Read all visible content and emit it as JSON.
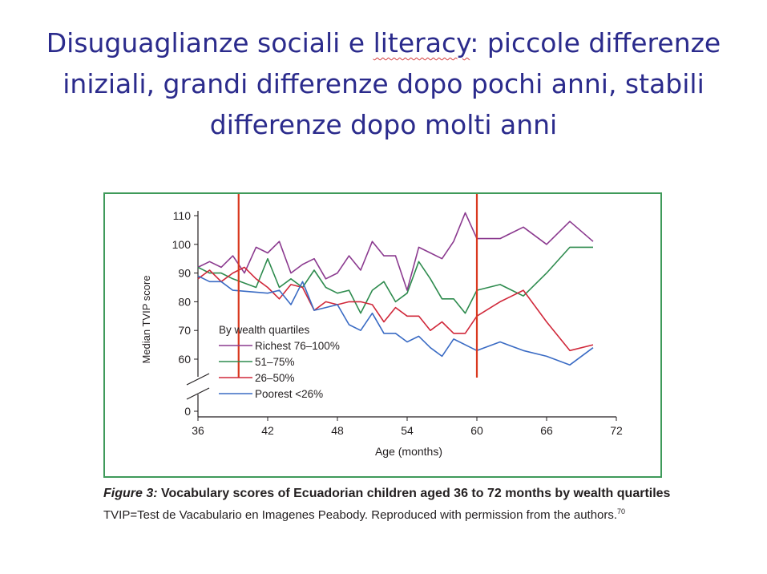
{
  "slide": {
    "title_part1": "Disuguaglianze sociali e ",
    "title_word_underlined": "literacy",
    "title_part2": ": piccole differenze iniziali, grandi differenze dopo pochi anni, stabili differenze dopo molti anni"
  },
  "caption": {
    "figure_label": "Figure 3:",
    "title": "Vocabulary scores of Ecuadorian children aged 36 to 72 months by wealth quartiles",
    "note": "TVIP=Test de Vacabulario en Imagenes Peabody. Reproduced with permission from the authors.",
    "ref": "70"
  },
  "chart_data": {
    "type": "line",
    "xlabel": "Age (months)",
    "ylabel": "Median TVIP score",
    "xlim": [
      36,
      72
    ],
    "x_ticks": [
      36,
      42,
      48,
      54,
      60,
      66,
      72
    ],
    "y_ticks": [
      60,
      70,
      80,
      90,
      100,
      110
    ],
    "y_extra_tick": 0,
    "y_axis_break": true,
    "legend_title": "By wealth quartiles",
    "legend_position": "lower-left",
    "vertical_markers": [
      39.5,
      60
    ],
    "colors": {
      "richest": "#8b3a8f",
      "q51_75": "#2e8b4e",
      "q26_50": "#d0283a",
      "poorest": "#3a6bc4",
      "markers": "#d9381e",
      "frame": "#3f9a5a"
    },
    "series": [
      {
        "key": "richest",
        "name": "Richest 76–100%",
        "points": [
          [
            36,
            92
          ],
          [
            37,
            94
          ],
          [
            38,
            92
          ],
          [
            39,
            96
          ],
          [
            40,
            90
          ],
          [
            41,
            99
          ],
          [
            42,
            97
          ],
          [
            43,
            101
          ],
          [
            44,
            90
          ],
          [
            45,
            93
          ],
          [
            46,
            95
          ],
          [
            47,
            88
          ],
          [
            48,
            90
          ],
          [
            49,
            96
          ],
          [
            50,
            91
          ],
          [
            51,
            101
          ],
          [
            52,
            96
          ],
          [
            53,
            96
          ],
          [
            54,
            84
          ],
          [
            55,
            99
          ],
          [
            56,
            97
          ],
          [
            57,
            95
          ],
          [
            58,
            101
          ],
          [
            59,
            111
          ],
          [
            60,
            102
          ],
          [
            62,
            102
          ],
          [
            64,
            106
          ],
          [
            66,
            100
          ],
          [
            68,
            108
          ],
          [
            70,
            101
          ]
        ]
      },
      {
        "key": "q51_75",
        "name": "51–75%",
        "points": [
          [
            36,
            92
          ],
          [
            37,
            90
          ],
          [
            38,
            90
          ],
          [
            39,
            88
          ],
          [
            41,
            85
          ],
          [
            42,
            95
          ],
          [
            43,
            85
          ],
          [
            44,
            88
          ],
          [
            45,
            85
          ],
          [
            46,
            91
          ],
          [
            47,
            85
          ],
          [
            48,
            83
          ],
          [
            49,
            84
          ],
          [
            50,
            76
          ],
          [
            51,
            84
          ],
          [
            52,
            87
          ],
          [
            53,
            80
          ],
          [
            54,
            83
          ],
          [
            55,
            94
          ],
          [
            56,
            88
          ],
          [
            57,
            81
          ],
          [
            58,
            81
          ],
          [
            59,
            76
          ],
          [
            60,
            84
          ],
          [
            62,
            86
          ],
          [
            64,
            82
          ],
          [
            66,
            90
          ],
          [
            68,
            99
          ],
          [
            70,
            99
          ]
        ]
      },
      {
        "key": "q26_50",
        "name": "26–50%",
        "points": [
          [
            36,
            88
          ],
          [
            37,
            91
          ],
          [
            38,
            87
          ],
          [
            39,
            90
          ],
          [
            40,
            92
          ],
          [
            41,
            88
          ],
          [
            42,
            85
          ],
          [
            43,
            81
          ],
          [
            44,
            86
          ],
          [
            45,
            85
          ],
          [
            46,
            77
          ],
          [
            47,
            80
          ],
          [
            48,
            79
          ],
          [
            49,
            80
          ],
          [
            50,
            80
          ],
          [
            51,
            79
          ],
          [
            52,
            73
          ],
          [
            53,
            78
          ],
          [
            54,
            75
          ],
          [
            55,
            75
          ],
          [
            56,
            70
          ],
          [
            57,
            73
          ],
          [
            58,
            69
          ],
          [
            59,
            69
          ],
          [
            60,
            75
          ],
          [
            62,
            80
          ],
          [
            64,
            84
          ],
          [
            66,
            73
          ],
          [
            68,
            63
          ],
          [
            70,
            65
          ]
        ]
      },
      {
        "key": "poorest",
        "name": "Poorest <26%",
        "points": [
          [
            36,
            89
          ],
          [
            37,
            87
          ],
          [
            38,
            87
          ],
          [
            39,
            84
          ],
          [
            42,
            83
          ],
          [
            43,
            84
          ],
          [
            44,
            79
          ],
          [
            45,
            87
          ],
          [
            46,
            77
          ],
          [
            47,
            78
          ],
          [
            48,
            79
          ],
          [
            49,
            72
          ],
          [
            50,
            70
          ],
          [
            51,
            76
          ],
          [
            52,
            69
          ],
          [
            53,
            69
          ],
          [
            54,
            66
          ],
          [
            55,
            68
          ],
          [
            56,
            64
          ],
          [
            57,
            61
          ],
          [
            58,
            67
          ],
          [
            60,
            63
          ],
          [
            62,
            66
          ],
          [
            64,
            63
          ],
          [
            66,
            61
          ],
          [
            68,
            58
          ],
          [
            70,
            64
          ]
        ]
      }
    ]
  }
}
